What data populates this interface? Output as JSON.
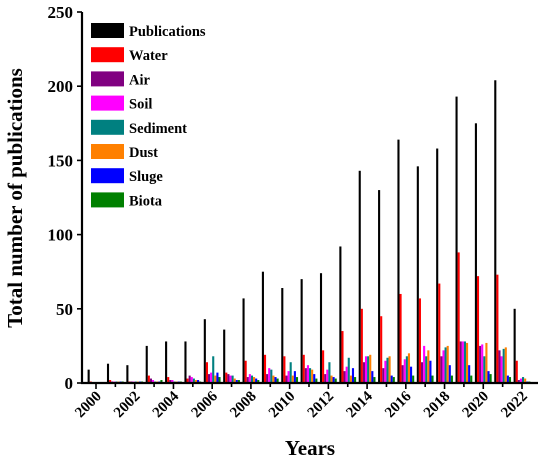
{
  "chart_data": {
    "type": "bar",
    "xlabel": "Years",
    "ylabel": "Total number of publications",
    "ylim": [
      0,
      250
    ],
    "yticks": [
      0,
      50,
      100,
      150,
      200,
      250
    ],
    "xtick_labels": [
      "2000",
      "2002",
      "2004",
      "2006",
      "2008",
      "2010",
      "2012",
      "2014",
      "2016",
      "2018",
      "2020",
      "2022"
    ],
    "legend_placement": "top-left",
    "categories": [
      "2000",
      "2001",
      "2002",
      "2003",
      "2004",
      "2005",
      "2006",
      "2007",
      "2008",
      "2009",
      "2010",
      "2011",
      "2012",
      "2013",
      "2014",
      "2015",
      "2016",
      "2017",
      "2018",
      "2019",
      "2020",
      "2021",
      "2022"
    ],
    "series": [
      {
        "name": "Publications",
        "color": "#000000",
        "values": [
          9,
          13,
          12,
          25,
          28,
          28,
          43,
          36,
          57,
          75,
          64,
          70,
          74,
          92,
          143,
          130,
          164,
          146,
          158,
          193,
          175,
          204,
          50
        ]
      },
      {
        "name": "Water",
        "color": "#ff0000",
        "values": [
          1,
          2,
          1,
          5,
          4,
          3,
          14,
          7,
          15,
          19,
          18,
          19,
          22,
          35,
          50,
          45,
          60,
          57,
          67,
          88,
          72,
          73,
          15
        ]
      },
      {
        "name": "Air",
        "color": "#800080",
        "values": [
          0,
          1,
          1,
          3,
          2,
          5,
          6,
          6,
          4,
          6,
          5,
          10,
          6,
          8,
          14,
          10,
          12,
          14,
          18,
          28,
          25,
          22,
          2
        ]
      },
      {
        "name": "Soil",
        "color": "#ff00ff",
        "values": [
          0,
          1,
          1,
          2,
          2,
          4,
          7,
          5,
          6,
          10,
          8,
          12,
          9,
          11,
          18,
          15,
          16,
          25,
          22,
          28,
          26,
          18,
          3
        ]
      },
      {
        "name": "Sediment",
        "color": "#008080",
        "values": [
          0,
          1,
          1,
          1,
          1,
          3,
          18,
          5,
          5,
          9,
          14,
          10,
          14,
          17,
          18,
          17,
          18,
          18,
          24,
          28,
          18,
          23,
          4
        ]
      },
      {
        "name": "Dust",
        "color": "#ff8000",
        "values": [
          0,
          1,
          1,
          1,
          1,
          2,
          5,
          3,
          4,
          5,
          5,
          9,
          5,
          5,
          19,
          18,
          20,
          22,
          25,
          27,
          27,
          24,
          3
        ]
      },
      {
        "name": "Sluge",
        "color": "#0000ff",
        "values": [
          0,
          1,
          1,
          1,
          1,
          2,
          7,
          2,
          3,
          4,
          8,
          6,
          4,
          10,
          8,
          5,
          11,
          15,
          12,
          12,
          8,
          5,
          1
        ]
      },
      {
        "name": "Biota",
        "color": "#008000",
        "values": [
          0,
          1,
          1,
          2,
          1,
          1,
          4,
          2,
          2,
          3,
          4,
          3,
          3,
          4,
          4,
          4,
          5,
          5,
          5,
          5,
          6,
          4,
          1
        ]
      }
    ]
  }
}
